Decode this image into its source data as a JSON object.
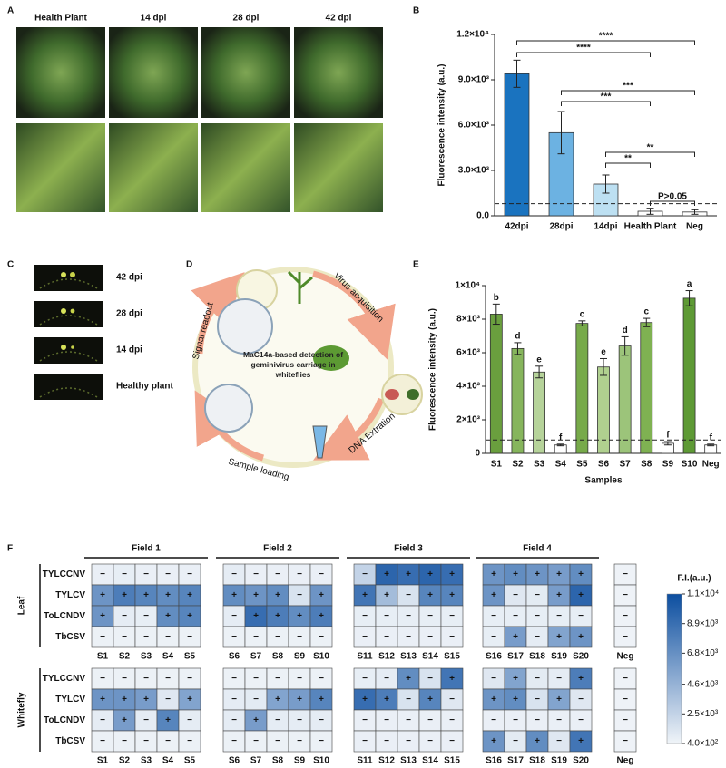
{
  "panel_labels": [
    "A",
    "B",
    "C",
    "D",
    "E",
    "F"
  ],
  "photos_a": {
    "labels": [
      "Health Plant",
      "14 dpi",
      "28 dpi",
      "42 dpi"
    ]
  },
  "photos_c": {
    "labels": [
      "42 dpi",
      "28 dpi",
      "14 dpi",
      "Healthy plant"
    ]
  },
  "diagram_d": {
    "center": "MaC14a-based detection of geminivirus carriage in whiteflies",
    "steps": [
      "Virus acquisition",
      "DNA Extration",
      "Sample loading",
      "Signal readout"
    ]
  },
  "chart_data": [
    {
      "type": "bar",
      "ylabel": "Fluorescence intensity (a.u.)",
      "categories": [
        "42dpi",
        "28dpi",
        "14dpi",
        "Health Plant",
        "Neg"
      ],
      "values": [
        9400,
        5500,
        2100,
        300,
        250
      ],
      "errors": [
        900,
        1400,
        600,
        200,
        150
      ],
      "colors": [
        "#1a73bf",
        "#6cb2e2",
        "#bde0f2",
        "#ffffff",
        "#ffffff"
      ],
      "ylim": [
        0,
        12000
      ],
      "yticks": [
        {
          "value": 0,
          "label": "0.0"
        },
        {
          "value": 3000,
          "label": "3.0×10³"
        },
        {
          "value": 6000,
          "label": "6.0×10³"
        },
        {
          "value": 9000,
          "label": "9.0×10³"
        },
        {
          "value": 12000,
          "label": "1.2×10⁴"
        }
      ],
      "threshold": 800,
      "annotations": [
        {
          "text": "****",
          "pair": [
            "42dpi",
            "Neg"
          ]
        },
        {
          "text": "****",
          "pair": [
            "42dpi",
            "Health Plant"
          ]
        },
        {
          "text": "***",
          "pair": [
            "28dpi",
            "Neg"
          ]
        },
        {
          "text": "***",
          "pair": [
            "28dpi",
            "Health Plant"
          ]
        },
        {
          "text": "**",
          "pair": [
            "14dpi",
            "Neg"
          ]
        },
        {
          "text": "**",
          "pair": [
            "14dpi",
            "Health Plant"
          ]
        },
        {
          "text": "P>0.05",
          "pair": [
            "Health Plant",
            "Neg"
          ]
        }
      ]
    },
    {
      "type": "bar",
      "ylabel": "Fluorescence intensity (a.u.)",
      "xlabel": "Samples",
      "categories": [
        "S1",
        "S2",
        "S3",
        "S4",
        "S5",
        "S6",
        "S7",
        "S8",
        "S9",
        "S10",
        "Neg"
      ],
      "values": [
        8300,
        6250,
        4850,
        500,
        7750,
        5150,
        6400,
        7800,
        600,
        9250,
        500
      ],
      "errors": [
        600,
        350,
        350,
        50,
        150,
        500,
        550,
        250,
        100,
        450,
        50
      ],
      "letters": [
        "b",
        "d",
        "e",
        "f",
        "c",
        "e",
        "d",
        "c",
        "f",
        "a",
        "f"
      ],
      "colors": [
        "#6a9f3e",
        "#86b55c",
        "#b6d39a",
        "#ffffff",
        "#77aa4a",
        "#b0d08f",
        "#9cc47a",
        "#7fb152",
        "#ffffff",
        "#5e9a35",
        "#ffffff"
      ],
      "ylim": [
        0,
        10000
      ],
      "yticks": [
        0,
        {
          "value": 2000,
          "label": "2×10³"
        },
        {
          "value": 4000,
          "label": "4×10³"
        },
        {
          "value": 6000,
          "label": "6×10³"
        },
        {
          "value": 8000,
          "label": "8×10³"
        },
        {
          "value": 10000,
          "label": "1×10⁴"
        }
      ],
      "threshold": 800
    },
    {
      "type": "heatmap",
      "colorbar_label": "F.I.(a.u.)",
      "groups": [
        "Field 1",
        "Field 2",
        "Field 3",
        "Field 4"
      ],
      "columns": [
        "S1",
        "S2",
        "S3",
        "S4",
        "S5",
        "S6",
        "S7",
        "S8",
        "S9",
        "S10",
        "S11",
        "S12",
        "S13",
        "S14",
        "S15",
        "S16",
        "S17",
        "S18",
        "S19",
        "S20",
        "Neg"
      ],
      "rows": [
        "TYLCCNV",
        "TYLCV",
        "ToLCNDV",
        "TbCSV"
      ],
      "zlim": [
        400,
        11000
      ],
      "zticks": [
        {
          "value": 400,
          "label": "4.0×10²"
        },
        {
          "value": 2500,
          "label": "2.5×10³"
        },
        {
          "value": 4600,
          "label": "4.6×10³"
        },
        {
          "value": 6800,
          "label": "6.8×10³"
        },
        {
          "value": 8900,
          "label": "8.9×10³"
        },
        {
          "value": 11000,
          "label": "1.1×10⁴"
        }
      ],
      "blocks": [
        {
          "name": "Leaf",
          "values": [
            [
              700,
              800,
              700,
              700,
              700,
              900,
              700,
              700,
              700,
              700,
              2500,
              9500,
              9000,
              9500,
              9000,
              6500,
              7000,
              6500,
              6000,
              7000,
              500
            ],
            [
              6500,
              8000,
              7500,
              7000,
              7500,
              7000,
              6500,
              7000,
              1500,
              6500,
              8500,
              4000,
              1500,
              7500,
              7500,
              6500,
              1200,
              1000,
              6000,
              9500,
              500
            ],
            [
              6500,
              900,
              800,
              7000,
              7500,
              900,
              9000,
              8000,
              7000,
              8000,
              800,
              800,
              800,
              800,
              800,
              800,
              800,
              800,
              800,
              800,
              500
            ],
            [
              600,
              600,
              600,
              600,
              600,
              600,
              600,
              600,
              600,
              600,
              700,
              700,
              700,
              700,
              700,
              800,
              6000,
              900,
              5500,
              6500,
              500
            ]
          ],
          "signs": [
            [
              "−",
              "−",
              "−",
              "−",
              "−",
              "−",
              "−",
              "−",
              "−",
              "−",
              "−",
              "+",
              "+",
              "+",
              "+",
              "+",
              "+",
              "+",
              "+",
              "+",
              "−"
            ],
            [
              "+",
              "+",
              "+",
              "+",
              "+",
              "+",
              "+",
              "+",
              "−",
              "+",
              "+",
              "+",
              "−",
              "+",
              "+",
              "+",
              "−",
              "−",
              "+",
              "+",
              "−"
            ],
            [
              "+",
              "−",
              "−",
              "+",
              "+",
              "−",
              "+",
              "+",
              "+",
              "+",
              "−",
              "−",
              "−",
              "−",
              "−",
              "−",
              "−",
              "−",
              "−",
              "−",
              "−"
            ],
            [
              "−",
              "−",
              "−",
              "−",
              "−",
              "−",
              "−",
              "−",
              "−",
              "−",
              "−",
              "−",
              "−",
              "−",
              "−",
              "−",
              "+",
              "−",
              "+",
              "+",
              "−"
            ]
          ]
        },
        {
          "name": "Whitefly",
          "values": [
            [
              600,
              600,
              600,
              600,
              600,
              600,
              600,
              600,
              600,
              600,
              800,
              900,
              7000,
              1500,
              8500,
              1200,
              5500,
              1000,
              900,
              8000,
              500
            ],
            [
              6500,
              6500,
              6000,
              1200,
              5500,
              900,
              1000,
              5500,
              6000,
              7500,
              9000,
              8000,
              1500,
              7500,
              1200,
              6500,
              7000,
              1500,
              5500,
              1200,
              500
            ],
            [
              900,
              6000,
              900,
              7500,
              900,
              900,
              6000,
              900,
              900,
              900,
              700,
              700,
              700,
              700,
              700,
              700,
              700,
              700,
              700,
              700,
              500
            ],
            [
              600,
              600,
              600,
              600,
              600,
              600,
              600,
              600,
              600,
              600,
              700,
              700,
              700,
              700,
              700,
              6500,
              1000,
              7000,
              1200,
              8500,
              500
            ]
          ],
          "signs": [
            [
              "−",
              "−",
              "−",
              "−",
              "−",
              "−",
              "−",
              "−",
              "−",
              "−",
              "−",
              "−",
              "+",
              "−",
              "+",
              "−",
              "+",
              "−",
              "−",
              "+",
              "−"
            ],
            [
              "+",
              "+",
              "+",
              "−",
              "+",
              "−",
              "−",
              "+",
              "+",
              "+",
              "+",
              "+",
              "−",
              "+",
              "−",
              "+",
              "+",
              "−",
              "+",
              "−",
              "−"
            ],
            [
              "−",
              "+",
              "−",
              "+",
              "−",
              "−",
              "+",
              "−",
              "−",
              "−",
              "−",
              "−",
              "−",
              "−",
              "−",
              "−",
              "−",
              "−",
              "−",
              "−",
              "−"
            ],
            [
              "−",
              "−",
              "−",
              "−",
              "−",
              "−",
              "−",
              "−",
              "−",
              "−",
              "−",
              "−",
              "−",
              "−",
              "−",
              "+",
              "−",
              "+",
              "−",
              "+",
              "−"
            ]
          ]
        }
      ]
    }
  ]
}
